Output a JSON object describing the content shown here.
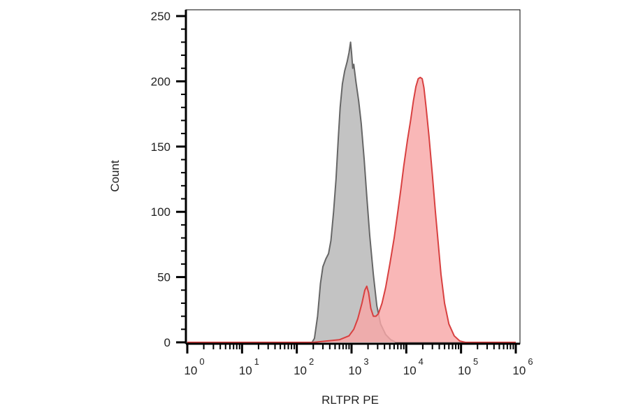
{
  "chart_data": {
    "type": "area",
    "title": "",
    "xlabel": "RLTPR PE",
    "ylabel": "Count",
    "x_scale": "log",
    "xlim": [
      1,
      1000000
    ],
    "ylim": [
      0,
      250
    ],
    "grid": false,
    "y_ticks": [
      0,
      50,
      100,
      150,
      200,
      250
    ],
    "x_tick_labels": [
      {
        "base": "10",
        "exp": "0",
        "value": 1
      },
      {
        "base": "10",
        "exp": "1",
        "value": 10
      },
      {
        "base": "10",
        "exp": "2",
        "value": 100
      },
      {
        "base": "10",
        "exp": "3",
        "value": 1000
      },
      {
        "base": "10",
        "exp": "4",
        "value": 10000
      },
      {
        "base": "10",
        "exp": "5",
        "value": 100000
      },
      {
        "base": "10",
        "exp": "6",
        "value": 1000000
      }
    ],
    "series": [
      {
        "color": "#666666",
        "fill": "#c3c3c3",
        "points": [
          [
            1,
            0
          ],
          [
            100,
            0
          ],
          [
            190,
            0
          ],
          [
            210,
            3
          ],
          [
            240,
            20
          ],
          [
            270,
            45
          ],
          [
            300,
            58
          ],
          [
            340,
            64
          ],
          [
            380,
            68
          ],
          [
            420,
            78
          ],
          [
            470,
            100
          ],
          [
            520,
            125
          ],
          [
            570,
            155
          ],
          [
            620,
            180
          ],
          [
            680,
            198
          ],
          [
            750,
            208
          ],
          [
            830,
            215
          ],
          [
            900,
            222
          ],
          [
            960,
            230
          ],
          [
            1000,
            222
          ],
          [
            1050,
            210
          ],
          [
            1100,
            213
          ],
          [
            1200,
            200
          ],
          [
            1350,
            185
          ],
          [
            1500,
            168
          ],
          [
            1700,
            140
          ],
          [
            1900,
            112
          ],
          [
            2150,
            82
          ],
          [
            2500,
            52
          ],
          [
            2900,
            28
          ],
          [
            3400,
            14
          ],
          [
            4200,
            6
          ],
          [
            5200,
            2
          ],
          [
            6500,
            0
          ],
          [
            1000000,
            0
          ]
        ]
      },
      {
        "color": "#d84040",
        "fill": "#f8a7a7",
        "points": [
          [
            1,
            0
          ],
          [
            200,
            0
          ],
          [
            600,
            2
          ],
          [
            900,
            5
          ],
          [
            1100,
            10
          ],
          [
            1300,
            18
          ],
          [
            1550,
            30
          ],
          [
            1750,
            40
          ],
          [
            1900,
            43
          ],
          [
            2050,
            38
          ],
          [
            2250,
            26
          ],
          [
            2500,
            20
          ],
          [
            2800,
            20
          ],
          [
            3100,
            22
          ],
          [
            3600,
            30
          ],
          [
            4200,
            42
          ],
          [
            5000,
            60
          ],
          [
            6000,
            80
          ],
          [
            7000,
            100
          ],
          [
            8000,
            118
          ],
          [
            9000,
            135
          ],
          [
            10500,
            155
          ],
          [
            12000,
            170
          ],
          [
            13500,
            185
          ],
          [
            15000,
            196
          ],
          [
            16500,
            202
          ],
          [
            18000,
            203
          ],
          [
            19500,
            202
          ],
          [
            21000,
            195
          ],
          [
            23000,
            180
          ],
          [
            26000,
            158
          ],
          [
            30000,
            128
          ],
          [
            34000,
            100
          ],
          [
            38000,
            78
          ],
          [
            43000,
            52
          ],
          [
            50000,
            30
          ],
          [
            60000,
            14
          ],
          [
            75000,
            5
          ],
          [
            95000,
            1
          ],
          [
            120000,
            0
          ],
          [
            1000000,
            0
          ]
        ]
      }
    ]
  }
}
